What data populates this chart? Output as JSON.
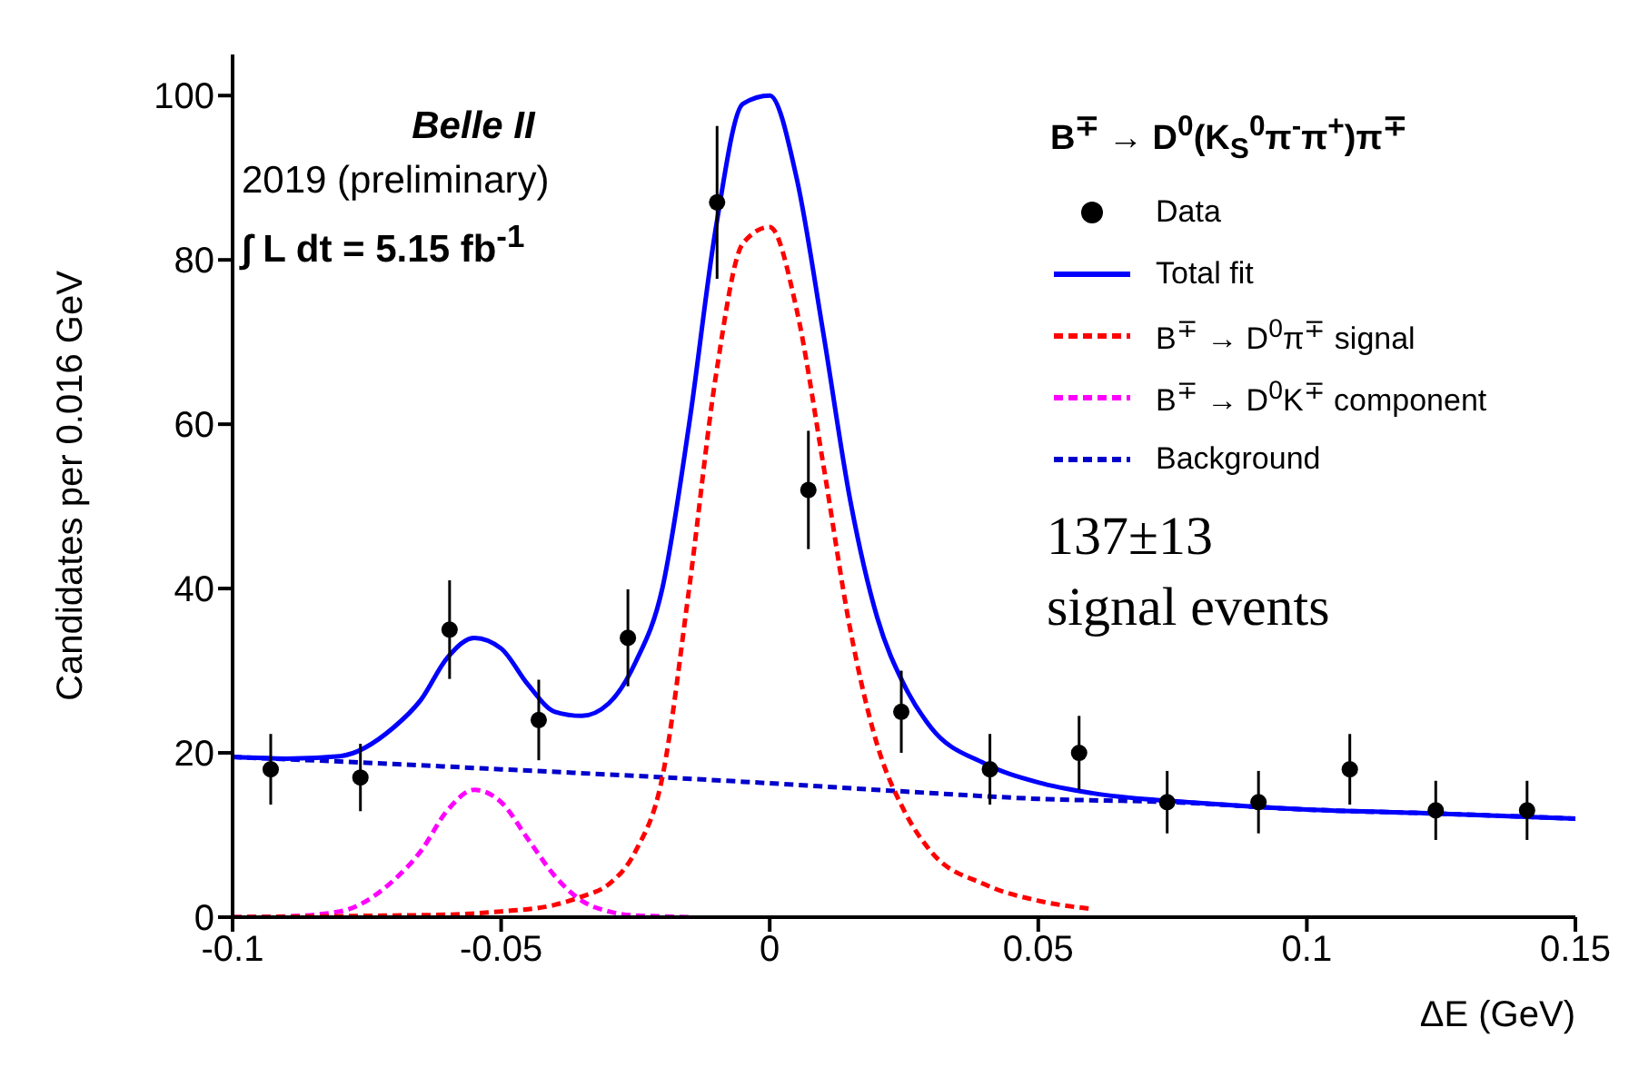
{
  "chart_data": {
    "type": "line",
    "xlabel": "ΔE (GeV)",
    "ylabel": "Candidates per 0.016 GeV",
    "xlim": [
      -0.1,
      0.15
    ],
    "xticks": [
      -0.1,
      -0.05,
      0,
      0.05,
      0.1,
      0.15
    ],
    "ylim": [
      0,
      105
    ],
    "yticks": [
      0,
      20,
      40,
      60,
      80,
      100
    ],
    "grid": false,
    "legend": "top right",
    "legend_title": "B$^{∓}$ → D$^{0}$(K$_{S}$$^{0}$π$^{-}$π$^{+}$)π$^{∓}$",
    "annotations": [
      "Belle II",
      "2019 (preliminary)",
      "∫ L dt = 5.15 fb$^{-1}$",
      "137±13",
      "signal events"
    ],
    "series": [
      {
        "name": "Data",
        "type": "scatter",
        "marker": "circle",
        "color": "#000000",
        "x": [
          -0.0929,
          -0.0762,
          -0.0596,
          -0.043,
          -0.0264,
          -0.0098,
          0.0072,
          0.0245,
          0.041,
          0.0576,
          0.074,
          0.091,
          0.108,
          0.124,
          0.141
        ],
        "values": [
          18,
          17,
          35,
          24,
          34,
          87,
          52,
          25,
          18,
          20,
          14,
          14,
          18,
          13,
          13
        ],
        "errors": [
          4.3,
          4.1,
          6,
          4.9,
          5.9,
          9.3,
          7.2,
          5,
          4.3,
          4.5,
          3.8,
          3.8,
          4.3,
          3.6,
          3.6
        ]
      },
      {
        "name": "Total fit",
        "line_style": "solid",
        "color": "#0000ff",
        "x": [
          -0.1,
          -0.09,
          -0.08,
          -0.07,
          -0.065,
          -0.06,
          -0.055,
          -0.05,
          -0.045,
          -0.04,
          -0.035,
          -0.03,
          -0.025,
          -0.02,
          -0.015,
          -0.01,
          -0.005,
          0,
          0.005,
          0.01,
          0.015,
          0.02,
          0.025,
          0.03,
          0.04,
          0.05,
          0.06,
          0.08,
          0.1,
          0.12,
          0.15
        ],
        "values": [
          19.5,
          19.3,
          19.6,
          23.1,
          26.4,
          31.6,
          34,
          32.7,
          28.3,
          25,
          24.5,
          26,
          31,
          40,
          60,
          84,
          99,
          100,
          90,
          71,
          50.7,
          36.5,
          28.3,
          23.1,
          18.7,
          16.4,
          15.1,
          13.9,
          13.1,
          12.7,
          12
        ]
      },
      {
        "name": "B$^{∓}$ → D$^{0}$π$^{∓}$ signal",
        "line_style": "dashed",
        "color": "#ff0000",
        "x": [
          -0.1,
          -0.07,
          -0.06,
          -0.05,
          -0.04,
          -0.035,
          -0.03,
          -0.025,
          -0.02,
          -0.015,
          -0.01,
          -0.005,
          0,
          0.005,
          0.01,
          0.015,
          0.02,
          0.025,
          0.03,
          0.04,
          0.05,
          0.06
        ],
        "values": [
          0,
          0.2,
          0.3,
          0.7,
          1.5,
          2.5,
          4,
          8,
          17,
          40,
          66,
          82,
          84,
          74,
          55,
          35,
          21,
          13,
          8,
          4,
          2,
          1
        ]
      },
      {
        "name": "B$^{∓}$ → D$^{0}$K$^{∓}$ component",
        "line_style": "dashed",
        "color": "#ff00ff",
        "x": [
          -0.1,
          -0.09,
          -0.08,
          -0.07,
          -0.065,
          -0.06,
          -0.055,
          -0.05,
          -0.045,
          -0.04,
          -0.035,
          -0.03,
          -0.025,
          -0.02,
          -0.015
        ],
        "values": [
          0,
          0.1,
          0.7,
          4.5,
          8,
          13,
          15.5,
          14,
          9.5,
          5,
          2,
          0.7,
          0.2,
          0.1,
          0
        ]
      },
      {
        "name": "Background",
        "line_style": "dashed",
        "color": "#0000cc",
        "x": [
          -0.1,
          -0.075,
          -0.05,
          -0.025,
          0,
          0.025,
          0.05,
          0.075,
          0.1,
          0.125,
          0.15
        ],
        "values": [
          19.5,
          18.8,
          18,
          17.2,
          16.3,
          15.3,
          14.4,
          14,
          13.1,
          12.6,
          12
        ]
      }
    ]
  }
}
